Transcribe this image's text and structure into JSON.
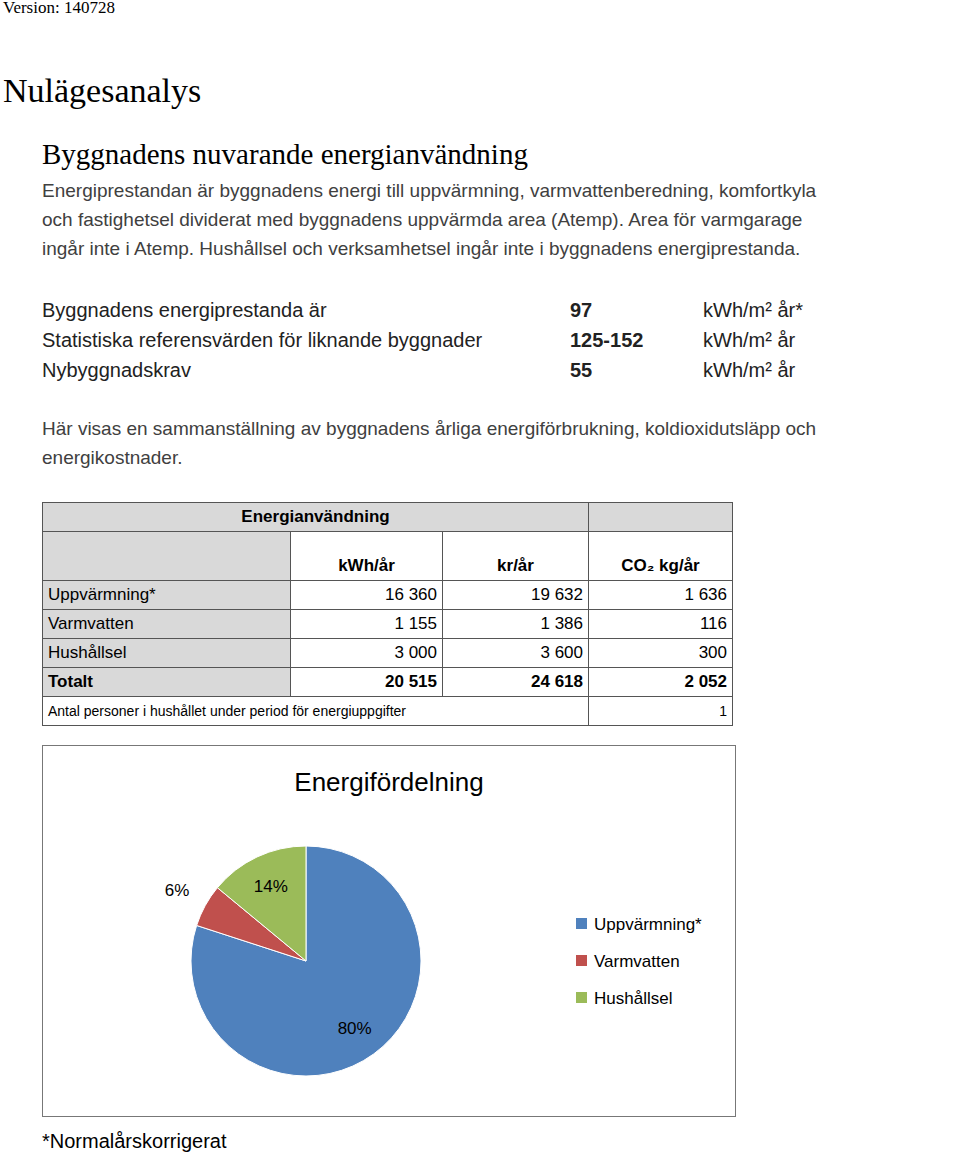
{
  "header": {
    "version": "Version: 140728",
    "title": "Nulägesanalys",
    "subtitle": "Byggnadens nuvarande energianvändning"
  },
  "intro": [
    "Energiprestandan är byggnadens energi till uppvärmning, varmvattenberedning, komfortkyla",
    "och fastighetsel dividerat med byggnadens uppvärmda area (Atemp). Area för varmgarage",
    "ingår inte i Atemp. Hushållsel och verksamhetsel ingår inte i byggnadens energiprestanda."
  ],
  "performance": [
    {
      "label": "Byggnadens energiprestanda är",
      "value": "97",
      "unit": "kWh/m² år*"
    },
    {
      "label": "Statistiska referensvärden för liknande byggnader",
      "value": "125-152",
      "unit": "kWh/m² år"
    },
    {
      "label": "Nybyggnadskrav",
      "value": "55",
      "unit": "kWh/m² år"
    }
  ],
  "summary": [
    "Här visas en sammanställning av byggnadens årliga energiförbrukning, koldioxidutsläpp och",
    "energikostnader."
  ],
  "table": {
    "title": "Energianvändning",
    "columns": [
      "kWh/år",
      "kr/år",
      "CO₂ kg/år"
    ],
    "rows": [
      [
        "Uppvärmning*",
        "16 360",
        "19 632",
        "1 636"
      ],
      [
        "Varmvatten",
        "1 155",
        "1 386",
        "116"
      ],
      [
        "Hushållsel",
        "3 000",
        "3 600",
        "300"
      ]
    ],
    "total": [
      "Totalt",
      "20 515",
      "24 618",
      "2 052"
    ],
    "persons": {
      "label": "Antal personer i hushållet under period för energiuppgifter",
      "value": "1"
    }
  },
  "chart_data": {
    "type": "pie",
    "title": "Energifördelning",
    "categories": [
      "Uppvärmning*",
      "Varmvatten",
      "Hushållsel"
    ],
    "values": [
      80,
      6,
      14
    ],
    "value_labels": [
      "80%",
      "6%",
      "14%"
    ],
    "colors": [
      "#4f81bd",
      "#c0504d",
      "#9bbb59"
    ],
    "data_labels": true,
    "legend": "right"
  },
  "footnote": "*Normalårskorrigerat"
}
